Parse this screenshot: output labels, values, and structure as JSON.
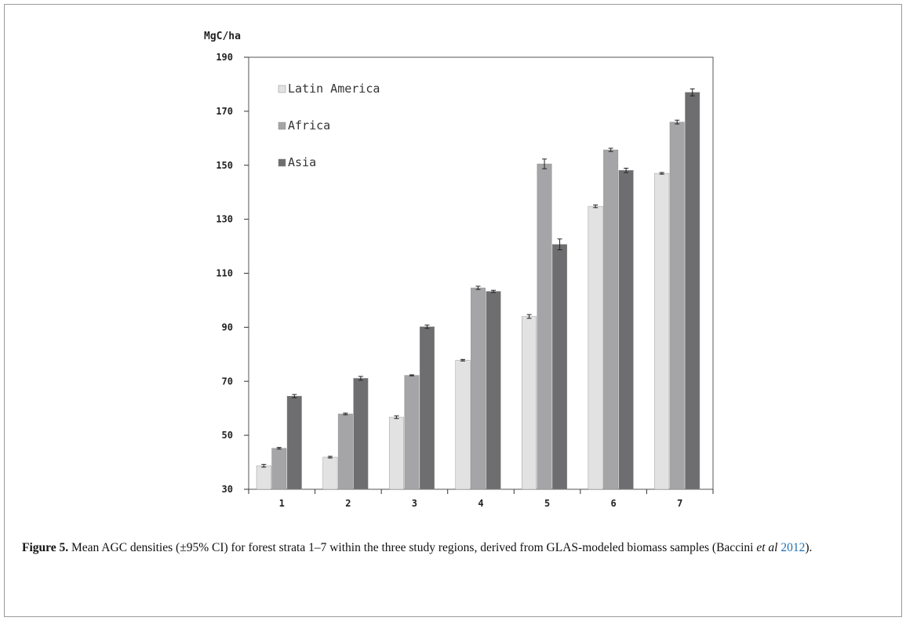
{
  "chart_data": {
    "type": "bar",
    "ylabel": "MgC/ha",
    "xlabel": "",
    "ylim": [
      30,
      190
    ],
    "yticks": [
      30,
      50,
      70,
      90,
      110,
      130,
      150,
      170,
      190
    ],
    "categories": [
      "1",
      "2",
      "3",
      "4",
      "5",
      "6",
      "7"
    ],
    "series": [
      {
        "name": "Latin America",
        "color": "#e2e2e2",
        "values": [
          38.7,
          41.9,
          56.7,
          77.8,
          94.0,
          134.8,
          147.0
        ],
        "ci": [
          0.5,
          0.3,
          0.5,
          0.3,
          0.7,
          0.5,
          0.3
        ]
      },
      {
        "name": "Africa",
        "color": "#a5a5a7",
        "values": [
          45.2,
          57.9,
          72.2,
          104.6,
          150.5,
          155.7,
          166.0
        ],
        "ci": [
          0.3,
          0.3,
          0.2,
          0.6,
          1.8,
          0.6,
          0.7
        ]
      },
      {
        "name": "Asia",
        "color": "#6e6e70",
        "values": [
          64.5,
          71.1,
          90.2,
          103.3,
          120.7,
          148.1,
          177.0
        ],
        "ci": [
          0.6,
          0.7,
          0.6,
          0.4,
          2.0,
          0.8,
          1.3
        ]
      }
    ],
    "legend_position": "top-left",
    "grid": false
  },
  "caption": {
    "label": "Figure 5.",
    "text_before": " Mean AGC densities (±95% CI) for forest strata 1–7 within the three study regions, derived from GLAS-modeled biomass samples (Baccini ",
    "etal": "et al",
    "space": " ",
    "year": "2012",
    "text_after": ")."
  }
}
